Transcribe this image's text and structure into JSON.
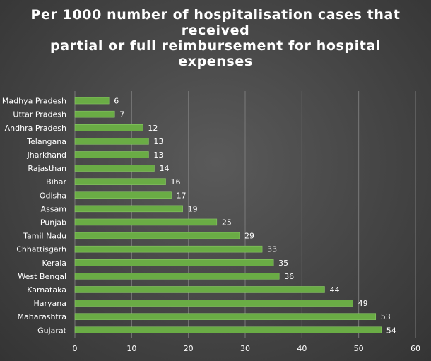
{
  "chart_data": {
    "type": "bar",
    "orientation": "horizontal",
    "title_lines": [
      "Per 1000 number  of hospitalisation cases that",
      "received",
      "partial or full reimbursement for hospital",
      "expenses"
    ],
    "categories": [
      "Madhya Pradesh",
      "Uttar Pradesh",
      "Andhra Pradesh",
      "Telangana",
      "Jharkhand",
      "Rajasthan",
      "Bihar",
      "Odisha",
      "Assam",
      "Punjab",
      "Tamil Nadu",
      "Chhattisgarh",
      "Kerala",
      "West Bengal",
      "Karnataka",
      "Haryana",
      "Maharashtra",
      "Gujarat"
    ],
    "values": [
      6,
      7,
      12,
      13,
      13,
      14,
      16,
      17,
      19,
      25,
      29,
      33,
      35,
      36,
      44,
      49,
      53,
      54
    ],
    "xlim": [
      0,
      60
    ],
    "xticks": [
      "0",
      "10",
      "20",
      "30",
      "40",
      "50",
      "60"
    ],
    "grid": "vertical",
    "bar_color": "#6aac45",
    "data_labels": true
  }
}
